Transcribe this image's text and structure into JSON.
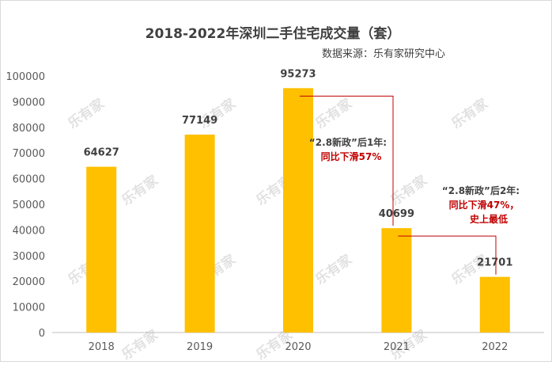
{
  "chart_data": {
    "type": "bar",
    "title": "2018-2022年深圳二手住宅成交量（套）",
    "subtitle": "数据来源：乐有家研究中心",
    "categories": [
      "2018",
      "2019",
      "2020",
      "2021",
      "2022"
    ],
    "values": [
      64627,
      77149,
      95273,
      40699,
      21701
    ],
    "value_labels": [
      "64627",
      "77149",
      "95273",
      "40699",
      "21701"
    ],
    "ylim": [
      0,
      100000
    ],
    "yticks": [
      0,
      10000,
      20000,
      30000,
      40000,
      50000,
      60000,
      70000,
      80000,
      90000,
      100000
    ],
    "ytick_labels": [
      "0",
      "10000",
      "20000",
      "30000",
      "40000",
      "50000",
      "60000",
      "70000",
      "80000",
      "90000",
      "100000"
    ],
    "grid": false,
    "bar_color": "#FFC000",
    "annotations": [
      {
        "from": "2020",
        "to": "2021",
        "line1": "“2.8新政”后1年:",
        "line2": "同比下滑57%"
      },
      {
        "from": "2021",
        "to": "2022",
        "line1": "“2.8新政”后2年:",
        "line2": "同比下滑47%，",
        "line3": "史上最低"
      }
    ],
    "annotation_line_color": "#C00000",
    "annotation_text_color": "#C00000",
    "watermark": "乐有家"
  }
}
